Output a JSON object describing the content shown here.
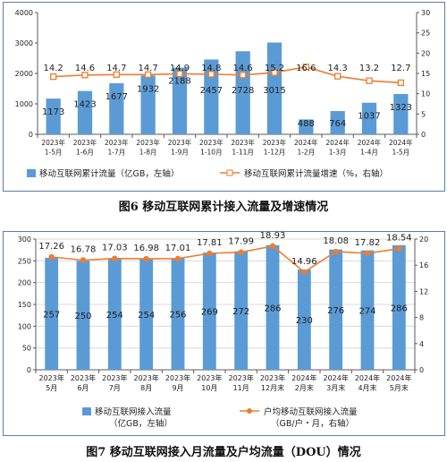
{
  "chart_data": [
    {
      "type": "bar",
      "caption": "图6 移动互联网累计接入流量及增速情况",
      "categories": [
        [
          "2023年",
          "1-5月"
        ],
        [
          "2023年",
          "1-6月"
        ],
        [
          "2023年",
          "1-7月"
        ],
        [
          "2023年",
          "1-8月"
        ],
        [
          "2023年",
          "1-9月"
        ],
        [
          "2023年",
          "1-10月"
        ],
        [
          "2023年",
          "1-11月"
        ],
        [
          "2023年",
          "1-12月"
        ],
        [
          "2024年",
          "1-2月"
        ],
        [
          "2024年",
          "1-3月"
        ],
        [
          "2024年",
          "1-4月"
        ],
        [
          "2024年",
          "1-5月"
        ]
      ],
      "left_axis": {
        "ylim": [
          0,
          4000
        ],
        "ticks": [
          0,
          1000,
          2000,
          3000,
          4000
        ]
      },
      "right_axis": {
        "ylim": [
          0,
          30
        ],
        "ticks": [
          0,
          5,
          10,
          15,
          20,
          25,
          30
        ]
      },
      "series": [
        {
          "name": "移动互联网累计流量（亿GB，左轴）",
          "type": "bar",
          "axis": "left",
          "color": "#5b9bd5",
          "values": [
            1173,
            1423,
            1677,
            1932,
            2188,
            2457,
            2728,
            3015,
            488,
            764,
            1037,
            1323
          ],
          "labels": [
            "1173",
            "1423",
            "1677",
            "1932",
            "2188",
            "2457",
            "2728",
            "3015",
            "488",
            "764",
            "1037",
            "1323"
          ]
        },
        {
          "name": "移动互联网累计流量增速（%，右轴）",
          "type": "line",
          "axis": "right",
          "color": "#ed7d31",
          "values": [
            14.2,
            14.6,
            14.7,
            14.7,
            14.9,
            14.8,
            14.6,
            15.2,
            16.6,
            14.3,
            13.2,
            12.7
          ],
          "labels": [
            "14.2",
            "14.6",
            "14.7",
            "14.7",
            "14.9",
            "14.8",
            "14.6",
            "15.2",
            "16.6",
            "14.3",
            "13.2",
            "12.7"
          ]
        }
      ],
      "legend": "bottom",
      "grid": false
    },
    {
      "type": "bar",
      "caption": "图7 移动互联网接入月流量及户均流量（DOU）情况",
      "categories": [
        [
          "2023年",
          "5月"
        ],
        [
          "2023年",
          "6月"
        ],
        [
          "2023年",
          "7月"
        ],
        [
          "2023年",
          "8月"
        ],
        [
          "2023年",
          "9月"
        ],
        [
          "2023年",
          "10月"
        ],
        [
          "2023年",
          "11月"
        ],
        [
          "2023年",
          "12月末"
        ],
        [
          "2024年",
          "2月末"
        ],
        [
          "2024年",
          "3月末"
        ],
        [
          "2024年",
          "4月末"
        ],
        [
          "2024年",
          "5月末"
        ]
      ],
      "left_axis": {
        "ylim": [
          0,
          300
        ],
        "ticks": [
          0,
          50,
          100,
          150,
          200,
          250,
          300
        ]
      },
      "right_axis": {
        "ylim": [
          0,
          20
        ],
        "ticks": [
          0,
          4,
          8,
          12,
          16,
          20
        ]
      },
      "series": [
        {
          "name": "移动互联网接入流量",
          "name_line2": "（亿GB，左轴）",
          "type": "bar",
          "axis": "left",
          "color": "#5b9bd5",
          "values": [
            257,
            250,
            254,
            254,
            256,
            269,
            272,
            286,
            230,
            276,
            274,
            286
          ],
          "labels": [
            "257",
            "250",
            "254",
            "254",
            "256",
            "269",
            "272",
            "286",
            "230",
            "276",
            "274",
            "286"
          ]
        },
        {
          "name": "户均移动互联网接入流量",
          "name_line2": "（GB/户・月，右轴）",
          "type": "line",
          "axis": "right",
          "color": "#ed7d31",
          "values": [
            17.26,
            16.78,
            17.03,
            16.98,
            17.01,
            17.81,
            17.99,
            18.93,
            14.96,
            18.08,
            17.82,
            18.54
          ],
          "labels": [
            "17.26",
            "16.78",
            "17.03",
            "16.98",
            "17.01",
            "17.81",
            "17.99",
            "18.93",
            "14.96",
            "18.08",
            "17.82",
            "18.54"
          ]
        }
      ],
      "legend": "bottom",
      "grid": true
    }
  ]
}
